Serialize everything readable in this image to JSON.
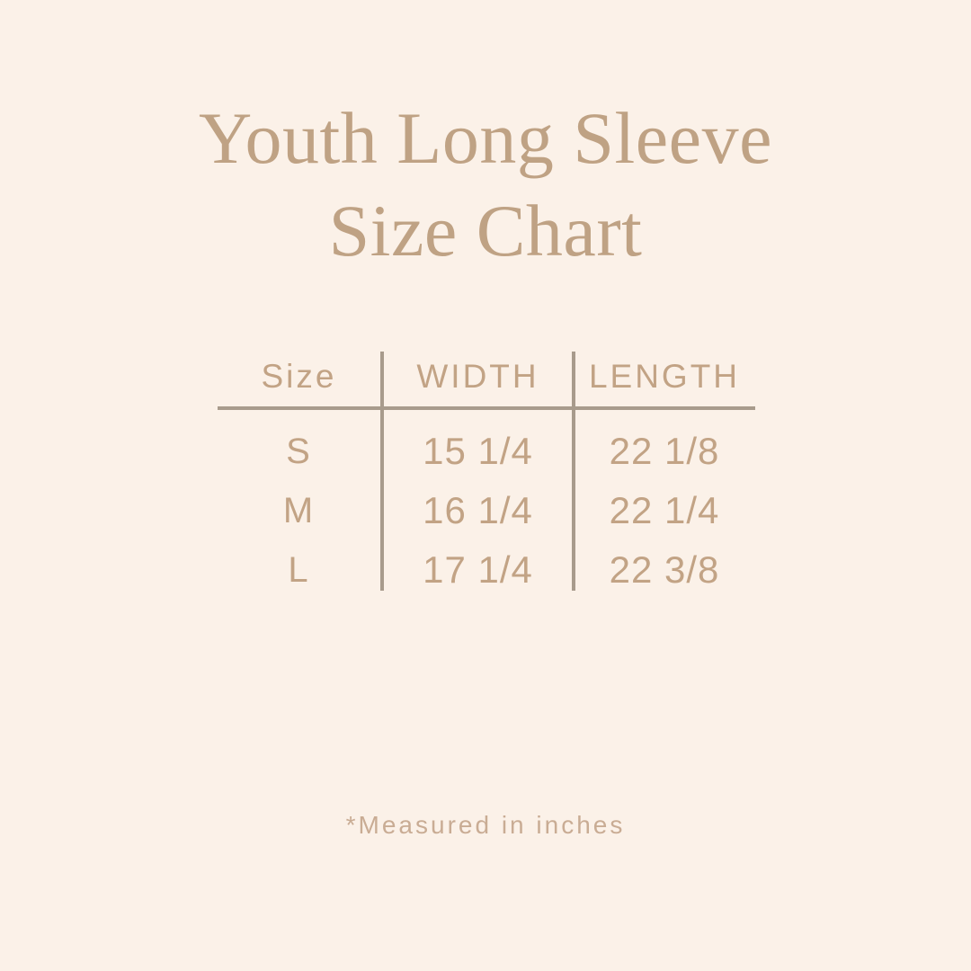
{
  "title": {
    "line1": "Youth Long Sleeve",
    "line2": "Size Chart"
  },
  "table": {
    "headers": {
      "size": "Size",
      "width": "WIDTH",
      "length": "LENGTH"
    },
    "rows": [
      {
        "size": "S",
        "width": "15 1/4",
        "length": "22 1/8"
      },
      {
        "size": "M",
        "width": "16 1/4",
        "length": "22 1/4"
      },
      {
        "size": "L",
        "width": "17 1/4",
        "length": "22 3/8"
      }
    ]
  },
  "footnote": "*Measured in inches",
  "colors": {
    "background": "#fbf1e8",
    "title_text": "#bfa284",
    "table_text": "#c2a385",
    "grid_line": "#a89b8c",
    "footnote_text": "#c9ac94"
  },
  "chart_data": {
    "type": "table",
    "title": "Youth Long Sleeve Size Chart",
    "columns": [
      "Size",
      "WIDTH",
      "LENGTH"
    ],
    "rows": [
      [
        "S",
        "15 1/4",
        "22 1/8"
      ],
      [
        "M",
        "16 1/4",
        "22 1/4"
      ],
      [
        "L",
        "17 1/4",
        "22 3/8"
      ]
    ],
    "note": "*Measured in inches",
    "units": "inches"
  }
}
